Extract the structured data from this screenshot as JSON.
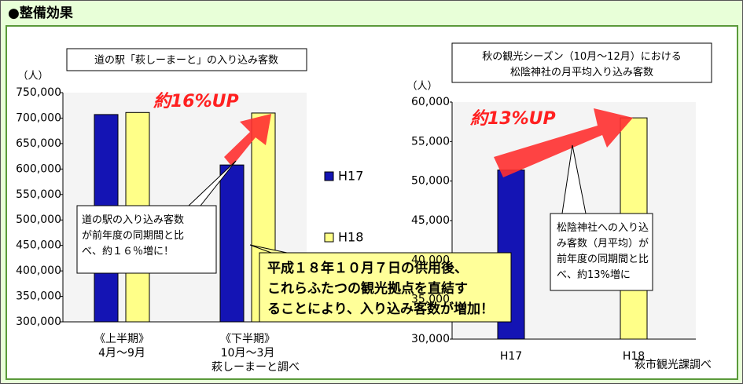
{
  "title": "●整備効果",
  "message": "平成１８年１０月７日の供用後、\nこれらふたつの観光拠点を直結す\nることにより、入り込み客数が増加！",
  "chart_data": [
    {
      "type": "bar",
      "title": "道の駅「萩しーまーと」の入り込み客数",
      "y_label": "（人）",
      "categories": [
        "《上半期》\n4月～9月",
        "《下半期》\n10月～3月"
      ],
      "series": [
        {
          "name": "H17",
          "color": "#1414b4",
          "values": [
            707000,
            608000
          ]
        },
        {
          "name": "H18",
          "color": "#ffff88",
          "values": [
            711000,
            710000
          ]
        }
      ],
      "ylim": [
        300000,
        750000
      ],
      "yticks": [
        {
          "value": 300000,
          "label": "300,000"
        },
        {
          "value": 350000,
          "label": "350,000"
        },
        {
          "value": 400000,
          "label": "400,000"
        },
        {
          "value": 450000,
          "label": "450,000"
        },
        {
          "value": 500000,
          "label": "500,000"
        },
        {
          "value": 550000,
          "label": "550,000"
        },
        {
          "value": 600000,
          "label": "600,000"
        },
        {
          "value": 650000,
          "label": "650,000"
        },
        {
          "value": 700000,
          "label": "700,000"
        },
        {
          "value": 750000,
          "label": "750,000"
        }
      ],
      "annotation": "約16%UP",
      "callout": "道の駅の入り込み客数\nが前年度の同期間と比\nべ、約１６％増に！",
      "source": "萩しーまーと調べ"
    },
    {
      "type": "bar",
      "title": "秋の観光シーズン（10月～12月）における\n松陰神社の月平均入り込み客数",
      "y_label": "（人）",
      "categories": [
        "H17",
        "H18"
      ],
      "values": [
        51400,
        58000
      ],
      "colors": [
        "#1414b4",
        "#ffff88"
      ],
      "ylim": [
        30000,
        60000
      ],
      "yticks": [
        {
          "value": 30000,
          "label": "30,000"
        },
        {
          "value": 35000,
          "label": "35,000"
        },
        {
          "value": 40000,
          "label": "40,000"
        },
        {
          "value": 45000,
          "label": "45,000"
        },
        {
          "value": 50000,
          "label": "50,000"
        },
        {
          "value": 55000,
          "label": "55,000"
        },
        {
          "value": 60000,
          "label": "60,000"
        }
      ],
      "annotation": "約13%UP",
      "callout": "松陰神社への入り込\nみ客数（月平均）が\n前年度の同期間と比\nべ、約13%増に",
      "source": "萩市観光課調べ"
    }
  ]
}
